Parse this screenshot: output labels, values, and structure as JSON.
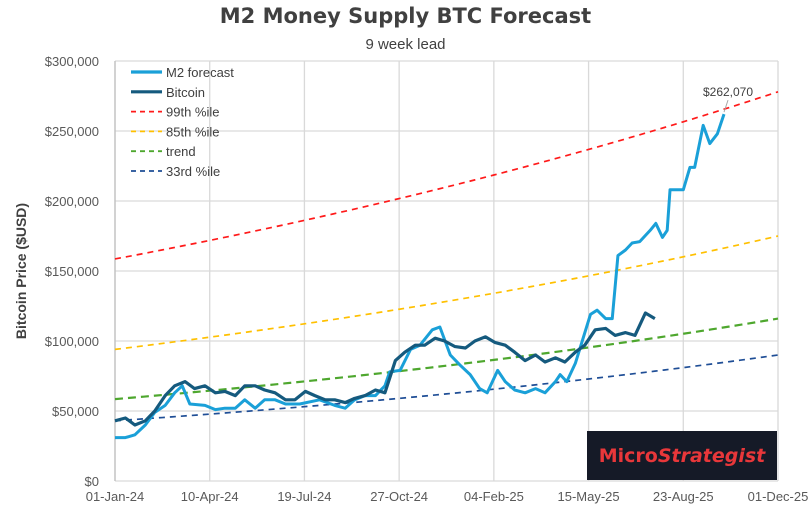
{
  "chart_data": {
    "type": "line",
    "title": "M2 Money Supply BTC Forecast",
    "subtitle": "9 week lead",
    "xlabel": "",
    "ylabel": "Bitcoin Price  ($USD)",
    "x_unit": "days since 01-Jan-24",
    "xlim": [
      0,
      700
    ],
    "ylim": [
      0,
      300000
    ],
    "x_ticks": [
      0,
      100,
      200,
      300,
      400,
      500,
      600,
      700
    ],
    "x_tick_labels": [
      "01-Jan-24",
      "10-Apr-24",
      "19-Jul-24",
      "27-Oct-24",
      "04-Feb-25",
      "15-May-25",
      "23-Aug-25",
      "01-Dec-25"
    ],
    "y_ticks": [
      0,
      50000,
      100000,
      150000,
      200000,
      250000,
      300000
    ],
    "y_tick_labels": [
      "$0",
      "$50,000",
      "$100,000",
      "$150,000",
      "$200,000",
      "$250,000",
      "$300,000"
    ],
    "grid": true,
    "legend_position": "top-left",
    "series": [
      {
        "name": "M2 forecast",
        "color": "#1aa0d8",
        "style": "solid",
        "x": [
          0,
          11,
          21,
          32,
          42,
          53,
          63,
          71,
          79,
          95,
          106,
          116,
          127,
          137,
          148,
          158,
          169,
          180,
          195,
          216,
          232,
          243,
          253,
          264,
          275,
          285,
          290,
          301,
          312,
          322,
          335,
          343,
          354,
          364,
          375,
          385,
          393,
          404,
          412,
          422,
          433,
          444,
          454,
          465,
          470,
          477,
          486,
          502,
          509,
          518,
          525,
          531,
          539,
          546,
          554,
          565,
          571,
          578,
          583,
          586,
          600,
          607,
          612,
          621,
          628,
          636,
          643
        ],
        "y": [
          31000,
          31000,
          33000,
          40000,
          49000,
          54000,
          63000,
          68000,
          55000,
          54000,
          51000,
          52000,
          52000,
          58000,
          52000,
          58000,
          58000,
          55000,
          55000,
          58000,
          54000,
          52000,
          58000,
          61000,
          61000,
          68000,
          78000,
          79000,
          94000,
          97000,
          108000,
          110000,
          90000,
          83000,
          76000,
          66000,
          63000,
          79000,
          71000,
          65000,
          63000,
          66000,
          63000,
          71000,
          76000,
          71000,
          84000,
          119000,
          122000,
          116000,
          116000,
          161000,
          165000,
          170000,
          171000,
          179000,
          184000,
          174000,
          179000,
          208000,
          208000,
          224000,
          224000,
          254000,
          241000,
          248000,
          262070
        ]
      },
      {
        "name": "Bitcoin",
        "color": "#155a7e",
        "style": "solid",
        "x": [
          0,
          11,
          21,
          32,
          42,
          53,
          63,
          74,
          84,
          95,
          106,
          116,
          127,
          137,
          148,
          158,
          169,
          180,
          190,
          201,
          211,
          222,
          232,
          243,
          253,
          264,
          275,
          285,
          296,
          306,
          317,
          327,
          338,
          348,
          359,
          370,
          380,
          391,
          401,
          412,
          422,
          433,
          444,
          454,
          465,
          475,
          486,
          496,
          507,
          518,
          528,
          539,
          549,
          560,
          570
        ],
        "y": [
          43000,
          45000,
          40000,
          43000,
          50000,
          61000,
          68000,
          71000,
          66000,
          68000,
          63000,
          64000,
          61000,
          68000,
          68000,
          65000,
          63000,
          58000,
          58000,
          64000,
          61000,
          58000,
          58000,
          56000,
          59000,
          61000,
          65000,
          63000,
          86000,
          92000,
          97000,
          97000,
          102000,
          100000,
          96000,
          95000,
          100000,
          103000,
          99000,
          97000,
          92000,
          86000,
          90000,
          85000,
          88000,
          85000,
          92000,
          97000,
          108000,
          109000,
          104000,
          106000,
          104000,
          120000,
          116000
        ]
      },
      {
        "name": "99th %ile",
        "color": "#ff1a1a",
        "style": "dashed",
        "x": [
          0,
          700
        ],
        "y": [
          158600,
          278000
        ],
        "growth": "exponential"
      },
      {
        "name": "85th %ile",
        "color": "#ffc000",
        "style": "dashed",
        "x": [
          0,
          700
        ],
        "y": [
          94000,
          175000
        ],
        "growth": "exponential"
      },
      {
        "name": "trend",
        "color": "#4ea72e",
        "style": "dashed",
        "x": [
          0,
          700
        ],
        "y": [
          58500,
          116000
        ],
        "growth": "exponential"
      },
      {
        "name": "33rd %ile",
        "color": "#1f4e96",
        "style": "dashed",
        "x": [
          0,
          700
        ],
        "y": [
          43000,
          90000
        ],
        "growth": "exponential"
      }
    ],
    "annotations": [
      {
        "text": "$262,070",
        "series": "M2 forecast",
        "x": 643,
        "y": 262070
      }
    ]
  },
  "logo": {
    "part1": "Micro",
    "part2": "Strategist"
  }
}
